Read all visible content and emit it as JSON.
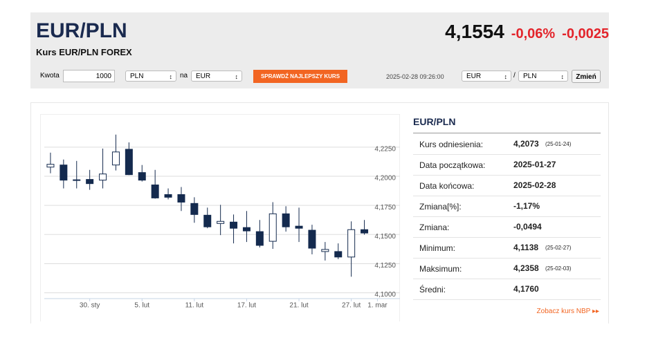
{
  "header": {
    "title": "EUR/PLN",
    "subtitle": "Kurs EUR/PLN FOREX",
    "price": "4,1554",
    "change_pct": "-0,06%",
    "change": "-0,0025"
  },
  "form": {
    "amount_label": "Kwota",
    "amount": "1000",
    "from": "PLN",
    "na": "na",
    "to": "EUR",
    "button": "SPRAWDŹ NAJLEPSZY KURS",
    "timestamp": "2025-02-28 09:26:00",
    "pair_from": "EUR",
    "slash": "/",
    "pair_to": "PLN",
    "change_button": "Zmień"
  },
  "chart_data": {
    "type": "candlestick",
    "categories": [
      null,
      null,
      null,
      "30. sty",
      null,
      null,
      null,
      "5. lut",
      null,
      null,
      null,
      "11. lut",
      null,
      null,
      null,
      "17. lut",
      null,
      null,
      null,
      "21. lut",
      null,
      null,
      null,
      "27. lut",
      null,
      "1. mar"
    ],
    "open": [
      4.2079,
      4.2097,
      4.197,
      4.1973,
      4.1967,
      4.2097,
      4.2232,
      4.2032,
      4.1926,
      4.1843,
      4.1843,
      4.1767,
      4.1666,
      4.1595,
      4.1607,
      4.156,
      4.1525,
      4.1442,
      4.1678,
      4.1572,
      4.1537,
      4.1354,
      4.1354,
      4.1307,
      4.1542,
      null
    ],
    "high": [
      4.2203,
      4.2144,
      4.2132,
      4.2055,
      4.2238,
      4.2358,
      4.2291,
      4.2097,
      4.2055,
      4.1896,
      4.1908,
      4.182,
      4.1731,
      4.1755,
      4.1672,
      4.1702,
      4.1625,
      4.1778,
      4.1743,
      4.1731,
      4.1584,
      4.1436,
      4.1424,
      4.1613,
      4.1625,
      null
    ],
    "low": [
      4.2026,
      4.1896,
      4.1896,
      4.1884,
      4.1896,
      4.205,
      4.201,
      4.1955,
      4.1808,
      4.1802,
      4.1702,
      4.1601,
      4.1554,
      4.1495,
      4.1424,
      4.1436,
      4.1389,
      4.1377,
      4.1525,
      4.1436,
      4.133,
      4.1277,
      4.1289,
      4.1138,
      4.1499,
      null
    ],
    "close": [
      4.2103,
      4.1967,
      4.1965,
      4.1937,
      4.202,
      4.2209,
      4.2014,
      4.1967,
      4.1814,
      4.182,
      4.1778,
      4.1672,
      4.1566,
      4.1613,
      4.1554,
      4.1531,
      4.1407,
      4.1678,
      4.1566,
      4.1554,
      4.1383,
      4.1372,
      4.1307,
      4.1542,
      4.1513,
      null
    ],
    "up_color": "#ffffff",
    "down_color": "#142a4e",
    "ylim": [
      4.095,
      4.2475
    ],
    "yticks": [
      {
        "value": 4.1,
        "label": "4,1000"
      },
      {
        "value": 4.125,
        "label": "4,1250"
      },
      {
        "value": 4.15,
        "label": "4,1500"
      },
      {
        "value": 4.175,
        "label": "4,1750"
      },
      {
        "value": 4.2,
        "label": "4,2000"
      },
      {
        "value": 4.225,
        "label": "4,2250"
      }
    ],
    "grid": true
  },
  "stats": {
    "title": "EUR/PLN",
    "rows": [
      {
        "label": "Kurs odniesienia:",
        "value": "4,2073",
        "note": "(25-01-24)"
      },
      {
        "label": "Data początkowa:",
        "value": "2025-01-27"
      },
      {
        "label": "Data końcowa:",
        "value": "2025-02-28"
      },
      {
        "label": "Zmiana[%]:",
        "value": "-1,17%"
      },
      {
        "label": "Zmiana:",
        "value": "-0,0494"
      },
      {
        "label": "Minimum:",
        "value": "4,1138",
        "note": "(25-02-27)"
      },
      {
        "label": "Maksimum:",
        "value": "4,2358",
        "note": "(25-02-03)"
      },
      {
        "label": "Średni:",
        "value": "4,1760"
      }
    ],
    "link": "Zobacz kurs NBP"
  }
}
